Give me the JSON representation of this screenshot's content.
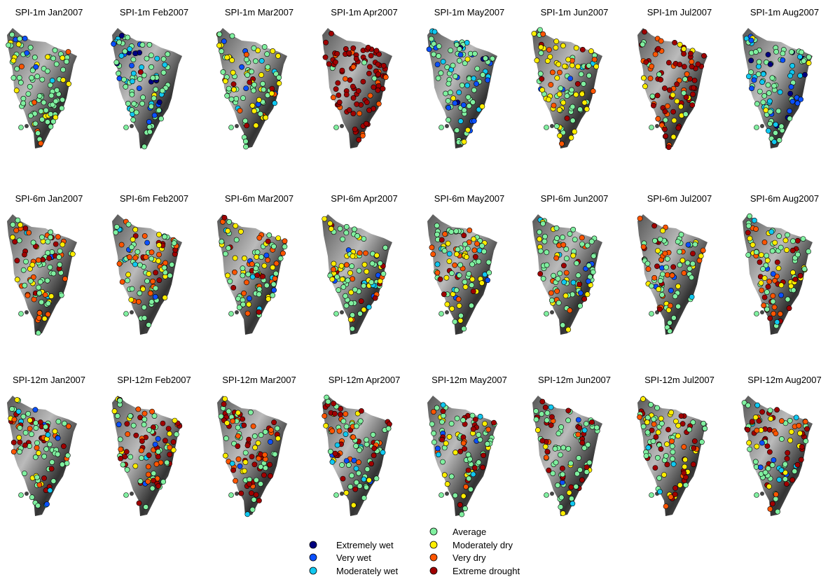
{
  "panels": [
    {
      "title": "SPI-1m Jan2007"
    },
    {
      "title": "SPI-1m Feb2007"
    },
    {
      "title": "SPI-1m Mar2007"
    },
    {
      "title": "SPI-1m Apr2007"
    },
    {
      "title": "SPI-1m May2007"
    },
    {
      "title": "SPI-1m Jun2007"
    },
    {
      "title": "SPI-1m Jul2007"
    },
    {
      "title": "SPI-1m Aug2007"
    },
    {
      "title": "SPI-6m Jan2007"
    },
    {
      "title": "SPI-6m Feb2007"
    },
    {
      "title": "SPI-6m Mar2007"
    },
    {
      "title": "SPI-6m Apr2007"
    },
    {
      "title": "SPI-6m May2007"
    },
    {
      "title": "SPI-6m Jun2007"
    },
    {
      "title": "SPI-6m Jul2007"
    },
    {
      "title": "SPI-6m Aug2007"
    },
    {
      "title": "SPI-12m Jan2007"
    },
    {
      "title": "SPI-12m Feb2007"
    },
    {
      "title": "SPI-12m Mar2007"
    },
    {
      "title": "SPI-12m Apr2007"
    },
    {
      "title": "SPI-12m May2007"
    },
    {
      "title": "SPI-12m Jun2007"
    },
    {
      "title": "SPI-12m Jul2007"
    },
    {
      "title": "SPI-12m Aug2007"
    }
  ],
  "legend": [
    {
      "label": "Extremely wet",
      "color": "#00007f"
    },
    {
      "label": "Very wet",
      "color": "#0a50ff"
    },
    {
      "label": "Moderately wet",
      "color": "#10c8f0"
    },
    {
      "label": "Average",
      "color": "#80f0a0"
    },
    {
      "label": "Moderately dry",
      "color": "#ffee00"
    },
    {
      "label": "Very dry",
      "color": "#ff5500"
    },
    {
      "label": "Extreme drought",
      "color": "#a00000"
    }
  ]
}
